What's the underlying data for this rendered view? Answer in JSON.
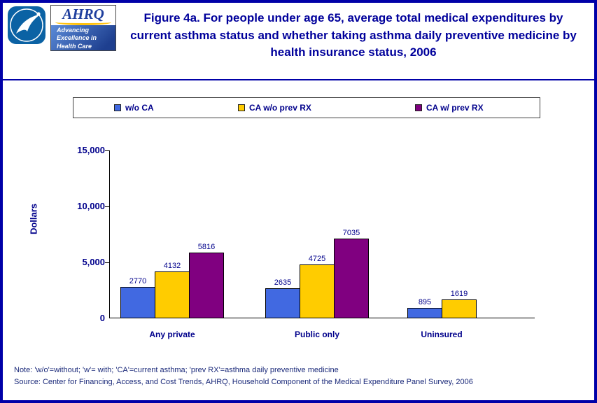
{
  "header": {
    "title": "Figure 4a. For people under age 65, average total medical expenditures by current asthma status and whether taking asthma daily preventive medicine by health insurance status, 2006",
    "logo": {
      "ahrq_text": "AHRQ",
      "tagline": "Advancing Excellence in Health Care"
    }
  },
  "chart_data": {
    "type": "bar",
    "title": "Figure 4a. For people under age 65, average total medical expenditures by current asthma status and whether taking asthma daily preventive medicine by health insurance status, 2006",
    "categories": [
      "Any private",
      "Public only",
      "Uninsured"
    ],
    "series": [
      {
        "name": "w/o CA",
        "color": "#4169E1",
        "values": [
          2770,
          2635,
          895
        ]
      },
      {
        "name": "CA w/o prev RX",
        "color": "#FFCC00",
        "values": [
          4132,
          4725,
          1619
        ]
      },
      {
        "name": "CA w/ prev RX",
        "color": "#800080",
        "values": [
          5816,
          7035,
          null
        ]
      }
    ],
    "ylabel": "Dollars",
    "xlabel": "",
    "ylim": [
      0,
      15000
    ],
    "yticks": [
      0,
      5000,
      10000,
      15000
    ],
    "ytick_labels": [
      "0",
      "5,000",
      "10,000",
      "15,000"
    ],
    "grid": false,
    "legend_position": "top"
  },
  "footer": {
    "note": "Note: 'w/o'=without; 'w'= with; 'CA'=current asthma; 'prev RX'=asthma daily preventive medicine",
    "source": "Source: Center for Financing, Access, and Cost Trends, AHRQ, Household Component of the Medical Expenditure Panel Survey, 2006"
  },
  "colors": {
    "page_border": "#0000A8",
    "title_text": "#00009B",
    "axis_text": "#00008B",
    "bar_blue": "#4169E1",
    "bar_yellow": "#FFCC00",
    "bar_purple": "#800080"
  }
}
